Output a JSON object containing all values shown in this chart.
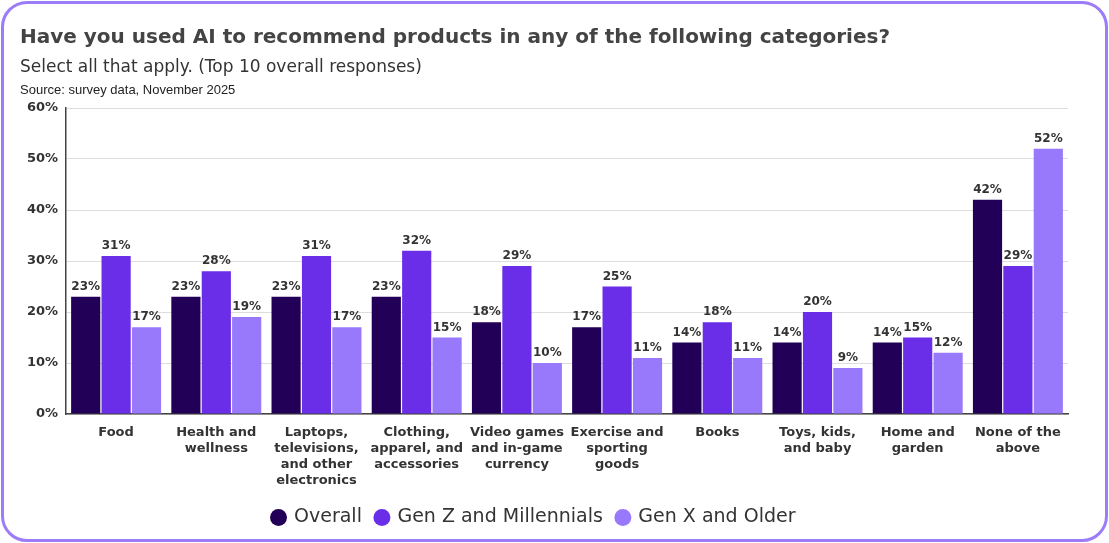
{
  "chart_data": {
    "type": "bar",
    "title": "Have you used AI to recommend products in any of the following categories?",
    "subtitle": "Select all that apply. (Top 10 overall responses)",
    "annotations": [
      "Source: survey data, November 2025"
    ],
    "categories": [
      "Food",
      "Health and wellness",
      "Laptops, televisions, and other electronics",
      "Clothing, apparel, and accessories",
      "Video games and in-game currency",
      "Exercise and sporting goods",
      "Books",
      "Toys, kids, and baby",
      "Home and garden",
      "None of the above"
    ],
    "series": [
      {
        "name": "Overall",
        "color": "#230057",
        "values": [
          23,
          23,
          23,
          23,
          18,
          17,
          14,
          14,
          14,
          42
        ],
        "value_labels": [
          "23%",
          "23%",
          "23%",
          "23%",
          "18%",
          "17%",
          "14%",
          "14%",
          "14%",
          "42%"
        ]
      },
      {
        "name": "Gen Z and Millennials",
        "color": "#6a2de8",
        "values": [
          31,
          28,
          31,
          32,
          29,
          25,
          18,
          20,
          15,
          29
        ],
        "value_labels": [
          "31%",
          "28%",
          "31%",
          "32%",
          "29%",
          "25%",
          "18%",
          "20%",
          "15%",
          "29%"
        ]
      },
      {
        "name": "Gen X and Older",
        "color": "#9878fb",
        "values": [
          17,
          19,
          17,
          15,
          10,
          11,
          11,
          9,
          12,
          52
        ],
        "value_labels": [
          "17%",
          "19%",
          "17%",
          "15%",
          "10%",
          "11%",
          "11%",
          "9%",
          "12%",
          "52%"
        ]
      }
    ],
    "ylim": [
      0,
      60
    ],
    "yticks": [
      {
        "value": 0,
        "label": "0%"
      },
      {
        "value": 10,
        "label": "10%"
      },
      {
        "value": 20,
        "label": "20%"
      },
      {
        "value": 30,
        "label": "30%"
      },
      {
        "value": 40,
        "label": "40%"
      },
      {
        "value": 50,
        "label": "50%"
      },
      {
        "value": 60,
        "label": "60%"
      }
    ],
    "grid": "y",
    "legend": "bottom"
  }
}
